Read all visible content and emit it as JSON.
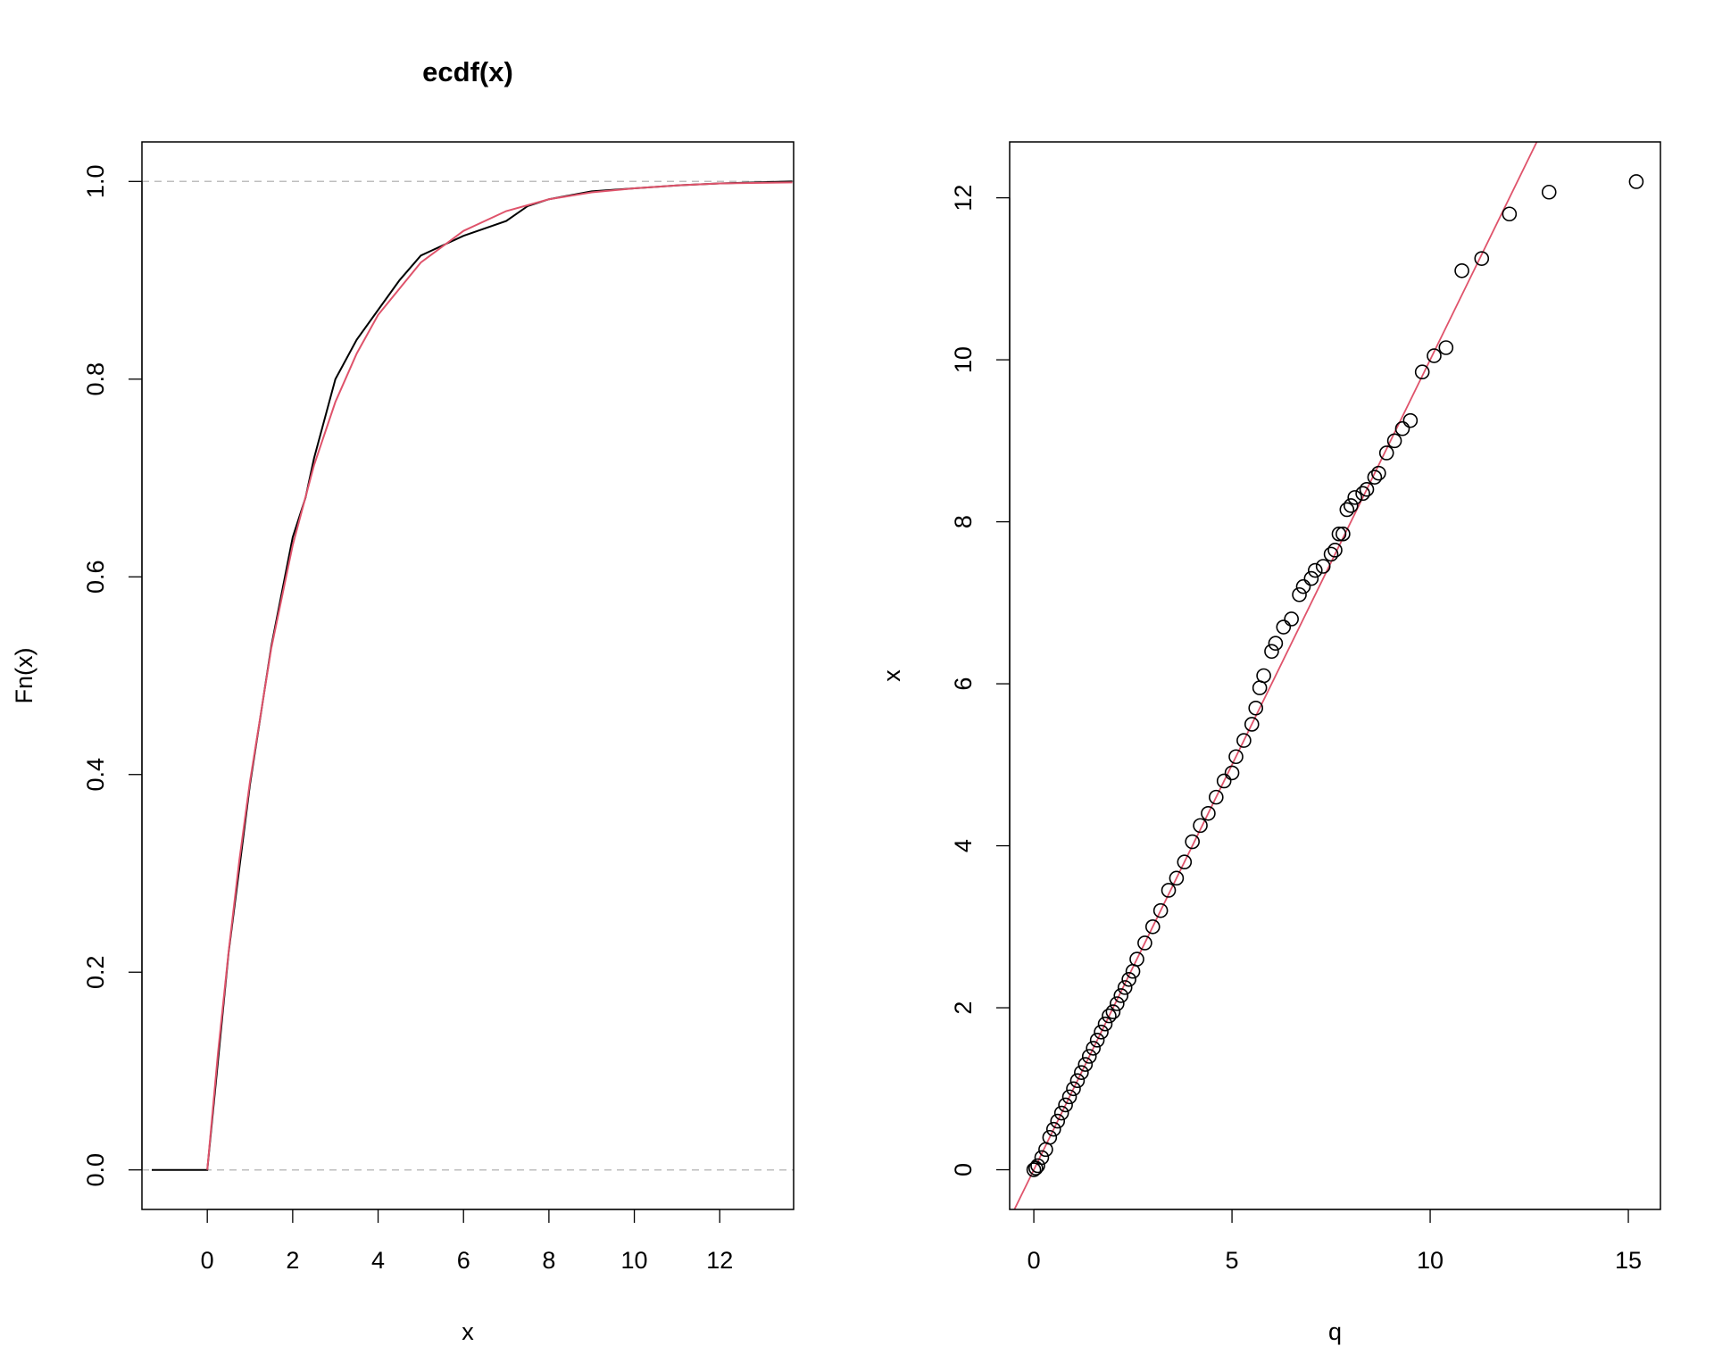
{
  "chart_data": [
    {
      "type": "line",
      "title": "ecdf(x)",
      "x_label": "x",
      "y_label": "Fn(x)",
      "xlim": [
        -1.53,
        13.73
      ],
      "ylim": [
        -0.04,
        1.04
      ],
      "xticks": [
        0,
        2,
        4,
        6,
        8,
        10,
        12
      ],
      "yticks": [
        {
          "value": 0,
          "label": "0.0"
        },
        0.2,
        0.4,
        0.6,
        0.8,
        {
          "value": 1,
          "label": "1.0"
        }
      ],
      "hlines": [
        0,
        1
      ],
      "hline_color": "#bebebe",
      "series": [
        {
          "color": "#000000",
          "x": [
            -1.3,
            0,
            0.5,
            1,
            1.5,
            2,
            2.3,
            2.5,
            3,
            3.5,
            4,
            4.5,
            5,
            5.5,
            6,
            7,
            7.5,
            8,
            9,
            10,
            11,
            12,
            13.7
          ],
          "values": [
            0,
            0,
            0.22,
            0.39,
            0.53,
            0.64,
            0.68,
            0.72,
            0.8,
            0.84,
            0.87,
            0.9,
            0.925,
            0.935,
            0.945,
            0.96,
            0.975,
            0.982,
            0.99,
            0.993,
            0.996,
            0.998,
            1.0
          ]
        },
        {
          "color": "#df536b",
          "x": [
            0,
            0.25,
            0.5,
            0.75,
            1,
            1.5,
            2,
            2.5,
            3,
            3.5,
            4,
            5,
            6,
            7,
            8,
            9,
            10,
            11,
            12,
            13.7
          ],
          "values": [
            0,
            0.118,
            0.221,
            0.313,
            0.393,
            0.528,
            0.632,
            0.713,
            0.777,
            0.826,
            0.865,
            0.918,
            0.95,
            0.97,
            0.982,
            0.989,
            0.993,
            0.996,
            0.998,
            0.999
          ]
        }
      ]
    },
    {
      "type": "scatter",
      "x_label": "q",
      "y_label": "x",
      "xlim": [
        -0.61,
        15.81
      ],
      "ylim": [
        -0.49,
        12.69
      ],
      "xticks": [
        0,
        5,
        10,
        15
      ],
      "yticks": [
        0,
        2,
        4,
        6,
        8,
        10,
        12
      ],
      "color": "#000000",
      "x": [
        0,
        0.05,
        0.1,
        0.2,
        0.3,
        0.4,
        0.5,
        0.6,
        0.7,
        0.8,
        0.9,
        1.0,
        1.1,
        1.2,
        1.3,
        1.4,
        1.5,
        1.6,
        1.7,
        1.8,
        1.9,
        2.0,
        2.1,
        2.2,
        2.3,
        2.4,
        2.5,
        2.6,
        2.8,
        3.0,
        3.2,
        3.4,
        3.6,
        3.8,
        4.0,
        4.2,
        4.4,
        4.6,
        4.8,
        5.0,
        5.1,
        5.3,
        5.5,
        5.6,
        5.7,
        5.8,
        6.0,
        6.1,
        6.3,
        6.5,
        6.7,
        6.8,
        7.0,
        7.1,
        7.3,
        7.5,
        7.6,
        7.7,
        7.8,
        7.9,
        8.0,
        8.1,
        8.3,
        8.4,
        8.6,
        8.7,
        8.9,
        9.1,
        9.3,
        9.5,
        9.8,
        10.1,
        10.4,
        10.8,
        11.3,
        12.0,
        13.0,
        15.2
      ],
      "values": [
        0,
        0.02,
        0.05,
        0.15,
        0.25,
        0.4,
        0.5,
        0.6,
        0.7,
        0.8,
        0.9,
        1.0,
        1.1,
        1.2,
        1.3,
        1.4,
        1.5,
        1.6,
        1.7,
        1.8,
        1.9,
        1.95,
        2.05,
        2.15,
        2.25,
        2.35,
        2.45,
        2.6,
        2.8,
        3.0,
        3.2,
        3.45,
        3.6,
        3.8,
        4.05,
        4.25,
        4.4,
        4.6,
        4.8,
        4.9,
        5.1,
        5.3,
        5.5,
        5.7,
        5.95,
        6.1,
        6.4,
        6.5,
        6.7,
        6.8,
        7.1,
        7.2,
        7.3,
        7.4,
        7.45,
        7.6,
        7.65,
        7.85,
        7.85,
        8.15,
        8.2,
        8.3,
        8.35,
        8.4,
        8.55,
        8.6,
        8.85,
        9.0,
        9.15,
        9.25,
        9.85,
        10.05,
        10.15,
        11.1,
        11.25,
        11.8,
        12.07,
        12.2
      ],
      "line": {
        "intercept": 0,
        "slope": 1,
        "color": "#df536b"
      }
    }
  ]
}
